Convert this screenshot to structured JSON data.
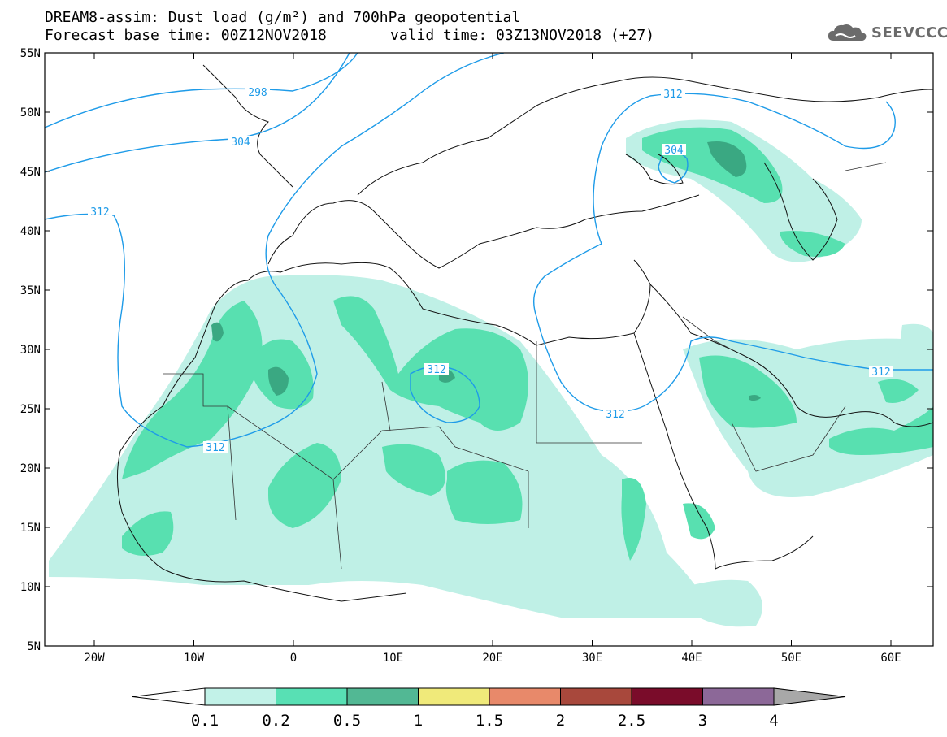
{
  "title": {
    "line1": "DREAM8-assim: Dust load (g/m²) and 700hPa geopotential",
    "line2_left": "Forecast base time: 00Z12NOV2018",
    "line2_right": "valid time: 03Z13NOV2018 (+27)"
  },
  "logo": {
    "text": "SEEVCCC",
    "icon": "cloud-icon"
  },
  "map": {
    "lat_labels": [
      "55N",
      "50N",
      "45N",
      "40N",
      "35N",
      "30N",
      "25N",
      "20N",
      "15N",
      "10N",
      "5N"
    ],
    "lon_labels": [
      "20W",
      "10W",
      "0",
      "10E",
      "20E",
      "30E",
      "40E",
      "50E",
      "60E"
    ],
    "contour_labels": [
      "298",
      "304",
      "312",
      "312",
      "312",
      "312",
      "312",
      "304",
      "312"
    ],
    "dust_colors": {
      "light": "#bff0e6",
      "medium": "#58e0b0",
      "dark": "#3aa882",
      "contour": "#1e9be8"
    }
  },
  "colorbar": {
    "labels": [
      "0.1",
      "0.2",
      "0.5",
      "1",
      "1.5",
      "2",
      "2.5",
      "3",
      "4"
    ],
    "colors": [
      "#ffffff",
      "#c2f2e8",
      "#58e0b4",
      "#52b894",
      "#f0ea7a",
      "#e8896a",
      "#a8483c",
      "#7a0c2a",
      "#8c6898",
      "#a8a8a8"
    ]
  }
}
